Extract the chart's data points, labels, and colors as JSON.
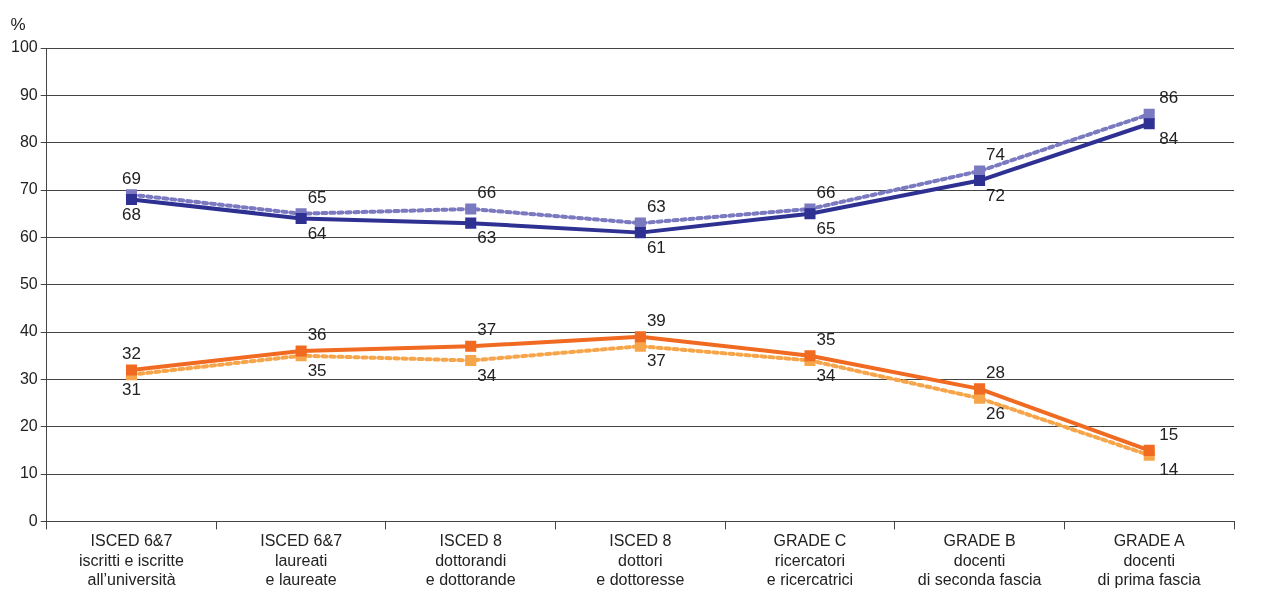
{
  "chart_data": {
    "type": "line",
    "ylabel": "%",
    "categories": [
      "ISCED 6&7\niscritti e iscritte\nall’università",
      "ISCED 6&7\nlaureati\ne laureate",
      "ISCED 8\ndottorandi\ne dottorande",
      "ISCED 8\ndottori\ne dottoresse",
      "GRADE C\nricercatori\ne ricercatrici",
      "GRADE B\ndocenti\ndi seconda fascia",
      "GRADE A\ndocenti\ndi prima fascia"
    ],
    "series": [
      {
        "color": "#2e3192",
        "line_style": "solid",
        "values": [
          68,
          64,
          63,
          61,
          65,
          72,
          84
        ]
      },
      {
        "color": "#7b79c0",
        "line_style": "dotted",
        "values": [
          69,
          65,
          66,
          63,
          66,
          74,
          86
        ]
      },
      {
        "color": "#f06a22",
        "line_style": "solid",
        "values": [
          32,
          36,
          37,
          39,
          35,
          28,
          15
        ]
      },
      {
        "color": "#f7a54a",
        "line_style": "dotted",
        "values": [
          31,
          35,
          34,
          37,
          34,
          26,
          14
        ]
      }
    ],
    "ylim": [
      0,
      100
    ],
    "yticks": [
      0,
      10,
      20,
      30,
      40,
      50,
      60,
      70,
      80,
      90,
      100
    ],
    "grid": "y",
    "marker": "square",
    "data_labels": true,
    "legend": false
  }
}
